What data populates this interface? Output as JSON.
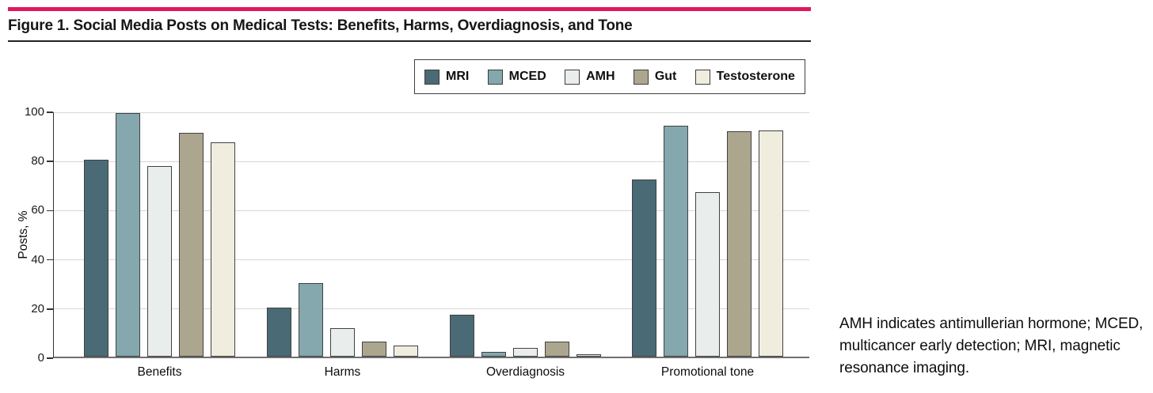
{
  "page": {
    "title": "Figure 1. Social Media Posts on Medical Tests: Benefits, Harms, Overdiagnosis, and Tone",
    "caption": "AMH indicates antimullerian hormone; MCED, multicancer early detection; MRI, magnetic resonance imaging.",
    "accent_color": "#e0185f"
  },
  "chart_data": {
    "type": "bar",
    "title": "Figure 1. Social Media Posts on Medical Tests: Benefits, Harms, Overdiagnosis, and Tone",
    "xlabel": "",
    "ylabel": "Posts, %",
    "ylim": [
      0,
      100
    ],
    "yticks": [
      0,
      20,
      40,
      60,
      80,
      100
    ],
    "grid": true,
    "legend_position": "top",
    "bar_border_color": "#414141",
    "categories": [
      "Benefits",
      "Harms",
      "Overdiagnosis",
      "Promotional tone"
    ],
    "series": [
      {
        "name": "MRI",
        "color": "#4a6a76",
        "values": [
          80,
          20,
          17,
          72
        ]
      },
      {
        "name": "MCED",
        "color": "#85a7ae",
        "values": [
          99,
          30,
          2,
          94
        ]
      },
      {
        "name": "AMH",
        "color": "#e9edec",
        "values": [
          77.5,
          11.5,
          3.5,
          67
        ]
      },
      {
        "name": "Gut",
        "color": "#ada68f",
        "values": [
          91,
          6,
          6,
          91.5
        ]
      },
      {
        "name": "Testosterone",
        "color": "#f0edde",
        "values": [
          87,
          4.5,
          1,
          92
        ]
      }
    ]
  }
}
